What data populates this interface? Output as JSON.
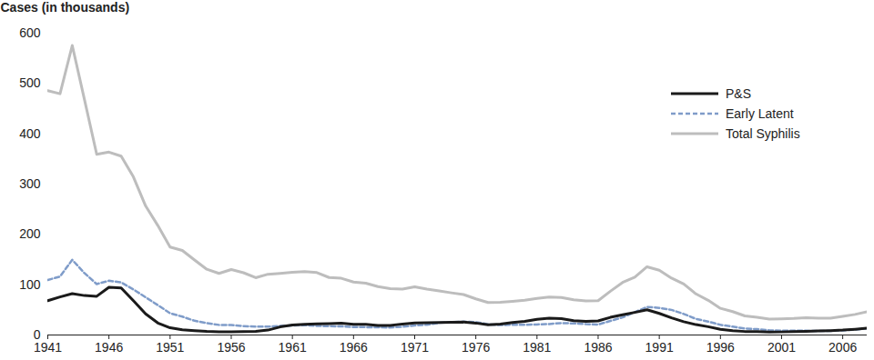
{
  "chart_data": {
    "type": "line",
    "y_label": "Cases (in thousands)",
    "x": [
      1941,
      1942,
      1943,
      1944,
      1945,
      1946,
      1947,
      1948,
      1949,
      1950,
      1951,
      1952,
      1953,
      1954,
      1955,
      1956,
      1957,
      1958,
      1959,
      1960,
      1961,
      1962,
      1963,
      1964,
      1965,
      1966,
      1967,
      1968,
      1969,
      1970,
      1971,
      1972,
      1973,
      1974,
      1975,
      1976,
      1977,
      1978,
      1979,
      1980,
      1981,
      1982,
      1983,
      1984,
      1985,
      1986,
      1987,
      1988,
      1989,
      1990,
      1991,
      1992,
      1993,
      1994,
      1995,
      1996,
      1997,
      1998,
      1999,
      2000,
      2001,
      2002,
      2003,
      2004,
      2005,
      2006,
      2007,
      2008
    ],
    "series": [
      {
        "name": "P&S",
        "color": "#1a1a1a",
        "line_style": "solid",
        "values": [
          68.2,
          75.6,
          82.2,
          78.4,
          77.0,
          94.9,
          93.5,
          68.2,
          41.9,
          23.9,
          14.4,
          10.4,
          8.6,
          7.2,
          6.5,
          6.4,
          6.6,
          7.2,
          9.8,
          16.1,
          19.9,
          21.1,
          22.0,
          22.7,
          23.3,
          21.4,
          21.1,
          19.0,
          19.1,
          21.9,
          23.8,
          24.4,
          24.8,
          25.4,
          25.6,
          23.7,
          20.4,
          21.7,
          24.9,
          27.2,
          31.3,
          33.6,
          32.7,
          28.6,
          27.1,
          27.9,
          35.1,
          40.1,
          45.0,
          50.2,
          42.9,
          34.0,
          26.5,
          20.6,
          16.5,
          11.4,
          8.6,
          7.0,
          6.7,
          5.9,
          6.1,
          6.9,
          7.2,
          8.0,
          8.7,
          9.8,
          11.5,
          13.5
        ]
      },
      {
        "name": "Early Latent",
        "color": "#7f9cc9",
        "line_style": "dashed",
        "values": [
          109.4,
          116.2,
          149.4,
          123.0,
          101.3,
          107.9,
          104.6,
          90.6,
          75.0,
          59.3,
          43.3,
          36.5,
          28.3,
          23.7,
          20.1,
          19.8,
          17.6,
          16.8,
          16.6,
          18.0,
          19.1,
          19.6,
          18.1,
          17.6,
          17.1,
          15.9,
          15.6,
          15.2,
          15.0,
          16.3,
          19.0,
          20.3,
          24.1,
          25.4,
          26.6,
          25.4,
          21.3,
          19.7,
          20.5,
          20.3,
          21.0,
          21.9,
          23.7,
          23.1,
          21.7,
          20.9,
          28.0,
          35.1,
          45.4,
          55.8,
          53.9,
          49.9,
          41.9,
          32.0,
          26.7,
          20.2,
          16.6,
          12.7,
          11.6,
          9.5,
          8.7,
          8.4,
          8.4,
          7.9,
          8.2,
          9.2,
          10.8,
          13.0
        ]
      },
      {
        "name": "Total Syphilis",
        "color": "#bdbdbd",
        "line_style": "solid",
        "values": [
          485.6,
          479.6,
          575.6,
          467.8,
          359.1,
          363.6,
          355.6,
          314.3,
          256.5,
          217.6,
          174.9,
          168.0,
          149.0,
          130.7,
          122.4,
          130.2,
          123.8,
          113.9,
          120.8,
          122.5,
          124.7,
          126.2,
          124.1,
          114.3,
          112.8,
          105.2,
          103.0,
          96.3,
          92.2,
          91.4,
          95.9,
          91.1,
          87.5,
          83.8,
          80.4,
          71.8,
          64.6,
          64.9,
          67.0,
          69.0,
          72.8,
          75.6,
          74.6,
          69.9,
          67.6,
          68.2,
          87.0,
          104.5,
          115.1,
          135.6,
          128.7,
          113.0,
          101.3,
          81.7,
          69.0,
          53.0,
          46.5,
          38.0,
          35.4,
          31.6,
          32.3,
          32.9,
          34.3,
          33.4,
          33.3,
          36.9,
          40.9,
          46.3
        ]
      }
    ],
    "xlim": [
      1941,
      2008
    ],
    "xticks": [
      1941,
      1946,
      1951,
      1956,
      1961,
      1966,
      1971,
      1976,
      1981,
      1986,
      1991,
      1996,
      2001,
      2006
    ],
    "ylim": [
      0,
      600
    ],
    "yticks": [
      0,
      100,
      200,
      300,
      400,
      500,
      600
    ],
    "grid": false,
    "legend": "top-right"
  }
}
